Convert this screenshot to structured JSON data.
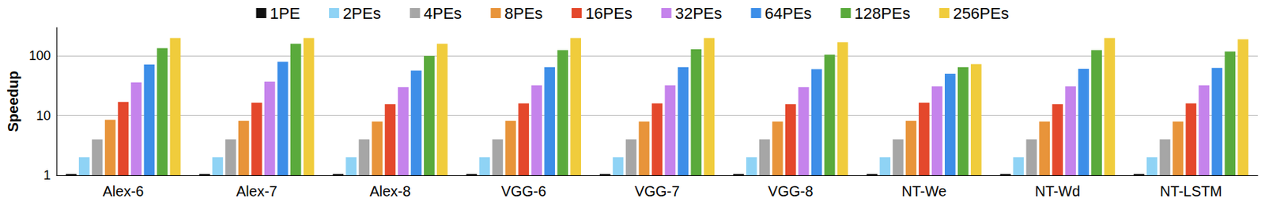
{
  "chart_data": {
    "type": "bar",
    "ylabel": "Speedup",
    "log": "y",
    "grid": true,
    "legend": "top",
    "categories": [
      "Alex-6",
      "Alex-7",
      "Alex-8",
      "VGG-6",
      "VGG-7",
      "VGG-8",
      "NT-We",
      "NT-Wd",
      "NT-LSTM"
    ],
    "ylim": [
      1,
      300
    ],
    "yticks": [
      1,
      10,
      100
    ],
    "series": [
      {
        "name": "1PE",
        "color": "#111111",
        "values": [
          1.05,
          1.05,
          1.05,
          1.05,
          1.05,
          1.05,
          1.05,
          1.05,
          1.05
        ]
      },
      {
        "name": "2PEs",
        "color": "#8fd3f5",
        "values": [
          2,
          2,
          2,
          2,
          2,
          2,
          2,
          2,
          2
        ]
      },
      {
        "name": "4PEs",
        "color": "#a6a6a6",
        "values": [
          4,
          4,
          4,
          4,
          4,
          4,
          4,
          4,
          4
        ]
      },
      {
        "name": "8PEs",
        "color": "#e8943a",
        "values": [
          8.5,
          8.2,
          8,
          8.2,
          8,
          8,
          8.2,
          8,
          8
        ]
      },
      {
        "name": "16PEs",
        "color": "#e4482c",
        "values": [
          17,
          16.5,
          15.5,
          16,
          16,
          15.5,
          16.5,
          15.5,
          16
        ]
      },
      {
        "name": "32PEs",
        "color": "#c583ec",
        "values": [
          36,
          37,
          30,
          32,
          32,
          30,
          31,
          31,
          32
        ]
      },
      {
        "name": "64PEs",
        "color": "#3d8ee8",
        "values": [
          72,
          80,
          57,
          65,
          65,
          60,
          50,
          61,
          63
        ]
      },
      {
        "name": "128PEs",
        "color": "#5aaa3c",
        "values": [
          135,
          160,
          100,
          125,
          130,
          105,
          65,
          125,
          118
        ]
      },
      {
        "name": "256PEs",
        "color": "#f0cc3c",
        "values": [
          200,
          200,
          160,
          200,
          200,
          170,
          73,
          200,
          190
        ]
      }
    ]
  }
}
